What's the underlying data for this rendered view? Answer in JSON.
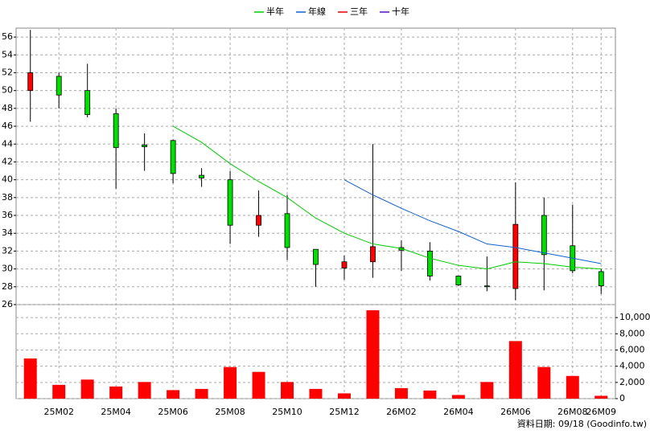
{
  "chart_data": [
    {
      "type": "candlestick",
      "categories": [
        null,
        "25M02",
        null,
        "25M04",
        null,
        "25M06",
        null,
        "25M08",
        null,
        "25M10",
        null,
        "25M12",
        null,
        "26M02",
        null,
        "26M04",
        null,
        "26M06",
        null,
        "26M08",
        "26M09"
      ],
      "open": [
        50,
        51.6,
        50,
        47.4,
        43.9,
        44.4,
        40.5,
        40,
        34.9,
        36.2,
        32.2,
        30.1,
        30.8,
        32.4,
        32,
        29.2,
        28.1,
        27.8,
        36,
        32.6,
        29.7
      ],
      "high": [
        56.8,
        52,
        53,
        48,
        45.2,
        44.5,
        41.3,
        41,
        38.8,
        38.3,
        32.2,
        31.5,
        44,
        33.2,
        33,
        29.2,
        31.4,
        39.7,
        38,
        37.2,
        30
      ],
      "low": [
        46.5,
        48,
        47,
        39,
        41,
        39.6,
        39.2,
        32.8,
        33.6,
        31,
        28,
        28.8,
        29,
        29.8,
        28.7,
        28.1,
        27.5,
        26.5,
        27.6,
        29.5,
        27.2
      ],
      "close": [
        52,
        49.5,
        47.3,
        43.6,
        43.7,
        40.7,
        40.2,
        34.9,
        36,
        32.4,
        30.5,
        30.8,
        32.5,
        32.1,
        29.2,
        28.2,
        28,
        35,
        31.6,
        29.8,
        28.1
      ],
      "up_color": "#ff0000",
      "down_color": "#00e000",
      "series": [
        {
          "name": "半年",
          "color": "#00cc00",
          "values": [
            null,
            null,
            null,
            null,
            null,
            46,
            44.2,
            41.8,
            39.8,
            38,
            35.7,
            34,
            32.8,
            32.3,
            31.2,
            30.4,
            30,
            30.8,
            30.6,
            30.2,
            30
          ]
        },
        {
          "name": "年線",
          "color": "#1060d0",
          "values": [
            null,
            null,
            null,
            null,
            null,
            null,
            null,
            null,
            null,
            null,
            null,
            40,
            38.3,
            36.8,
            35.4,
            34.2,
            32.8,
            32.4,
            31.8,
            31.2,
            30.6
          ]
        },
        {
          "name": "三年",
          "color": "#e00000",
          "values": [
            null,
            null,
            null,
            null,
            null,
            null,
            null,
            null,
            null,
            null,
            null,
            null,
            null,
            null,
            null,
            null,
            null,
            null,
            null,
            null,
            null
          ]
        },
        {
          "name": "十年",
          "color": "#5010c0",
          "values": [
            null,
            null,
            null,
            null,
            null,
            null,
            null,
            null,
            null,
            null,
            null,
            null,
            null,
            null,
            null,
            null,
            null,
            null,
            null,
            null,
            null
          ]
        }
      ],
      "ylim": [
        26,
        57
      ],
      "yticks": [
        26,
        28,
        30,
        32,
        34,
        36,
        38,
        40,
        42,
        44,
        46,
        48,
        50,
        52,
        54,
        56
      ],
      "grid": true
    },
    {
      "type": "bar",
      "values": [
        4950,
        1700,
        2350,
        1500,
        2050,
        1050,
        1200,
        3900,
        3300,
        2050,
        1200,
        650,
        10900,
        1300,
        1000,
        450,
        2050,
        7100,
        3900,
        2800,
        350
      ],
      "color": "#ff0000",
      "ylim": [
        0,
        11600
      ],
      "yticks": [
        0,
        {
          "value": 2000,
          "label": "2,000"
        },
        {
          "value": 4000,
          "label": "4,000"
        },
        {
          "value": 6000,
          "label": "6,000"
        },
        {
          "value": 8000,
          "label": "8,000"
        },
        {
          "value": 10000,
          "label": "10,000"
        }
      ],
      "grid": true,
      "footnote": "資料日期: 09/18  (Goodinfo.tw)"
    }
  ]
}
